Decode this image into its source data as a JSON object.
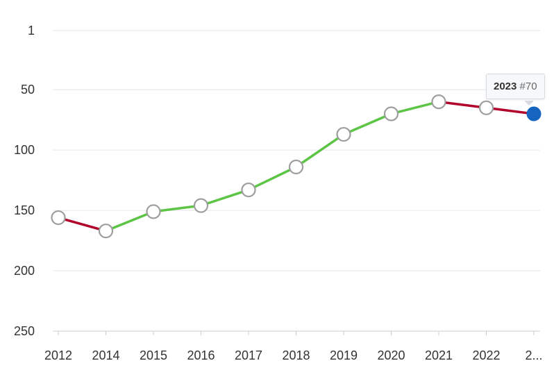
{
  "chart_data": {
    "type": "line",
    "categories": [
      "2012",
      "2014",
      "2015",
      "2016",
      "2017",
      "2018",
      "2019",
      "2020",
      "2021",
      "2022",
      "2023"
    ],
    "category_tick_labels": [
      "2012",
      "2014",
      "2015",
      "2016",
      "2017",
      "2018",
      "2019",
      "2020",
      "2021",
      "2022",
      "2..."
    ],
    "values": [
      156,
      167,
      151,
      146,
      133,
      114,
      87,
      70,
      60,
      65,
      70
    ],
    "y_axis": {
      "reversed": true,
      "ylim": [
        1,
        250
      ],
      "ticks": [
        1,
        50,
        100,
        150,
        200,
        250
      ]
    },
    "grid": true,
    "legend": "none",
    "colors": {
      "improving": "#5dc546",
      "declining": "#b0022a",
      "marker_fill": "#ffffff",
      "marker_stroke": "#9e9e9e",
      "highlight": "#1565c0"
    },
    "highlighted_point": {
      "year": "2023",
      "label": "#70"
    }
  }
}
